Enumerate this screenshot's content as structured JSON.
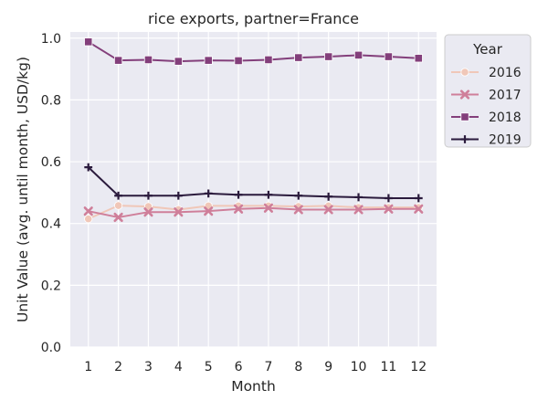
{
  "chart_data": {
    "type": "line",
    "title": "rice exports, partner=France",
    "xlabel": "Month",
    "ylabel": "Unit Value (avg. until month, USD/kg)",
    "x": [
      1,
      2,
      3,
      4,
      5,
      6,
      7,
      8,
      9,
      10,
      11,
      12
    ],
    "xlim": [
      0.4,
      12.6
    ],
    "ylim": [
      0.0,
      1.02
    ],
    "yticks": [
      0.0,
      0.2,
      0.4,
      0.6,
      0.8,
      1.0
    ],
    "ytick_labels": [
      "0.0",
      "0.2",
      "0.4",
      "0.6",
      "0.8",
      "1.0"
    ],
    "grid": true,
    "legend": {
      "title": "Year",
      "placement": "outside-right"
    },
    "series": [
      {
        "name": "2016",
        "color": "#f0c7b8",
        "marker": "circle",
        "values": [
          0.415,
          0.458,
          0.455,
          0.445,
          0.457,
          0.457,
          0.457,
          0.455,
          0.457,
          0.452,
          0.452,
          0.452
        ]
      },
      {
        "name": "2017",
        "color": "#cf7f9a",
        "marker": "x",
        "values": [
          0.44,
          0.42,
          0.437,
          0.437,
          0.44,
          0.447,
          0.45,
          0.445,
          0.445,
          0.445,
          0.447,
          0.447
        ]
      },
      {
        "name": "2018",
        "color": "#833f7b",
        "marker": "square",
        "values": [
          0.988,
          0.928,
          0.93,
          0.925,
          0.928,
          0.927,
          0.93,
          0.937,
          0.94,
          0.945,
          0.94,
          0.935
        ]
      },
      {
        "name": "2019",
        "color": "#2b1b3d",
        "marker": "plus",
        "values": [
          0.582,
          0.49,
          0.49,
          0.49,
          0.497,
          0.493,
          0.493,
          0.49,
          0.487,
          0.485,
          0.482,
          0.482
        ]
      }
    ]
  }
}
